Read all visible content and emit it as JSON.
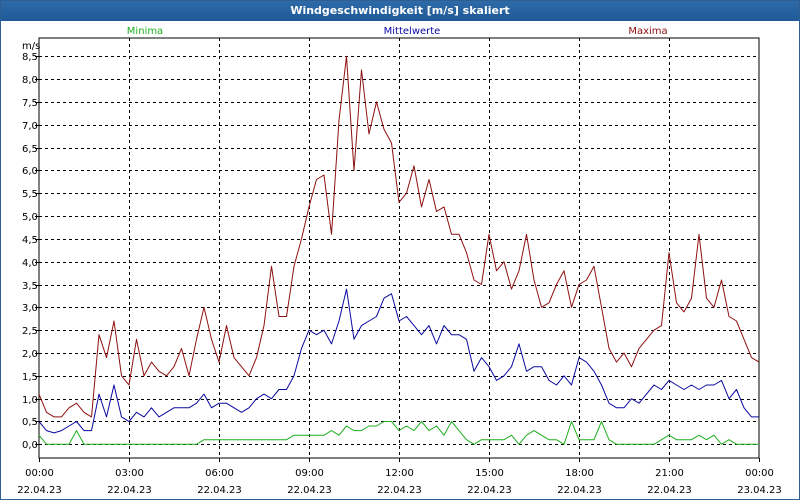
{
  "window": {
    "title": "Windgeschwindigkeit [m/s] skaliert"
  },
  "colors": {
    "min": "#1fae1f",
    "mean": "#0a0aa0",
    "max": "#8e1010",
    "title_bg": "#2466a6"
  },
  "chart_data": {
    "type": "line",
    "title": "Windgeschwindigkeit [m/s] skaliert",
    "ylabel": "m/s",
    "xlabel": "",
    "ylim": [
      -0.3,
      8.9
    ],
    "xlim": [
      0,
      24
    ],
    "grid": true,
    "legend": [
      "Minima",
      "Mittelwerte",
      "Maxima"
    ],
    "y_ticks": [
      "0,0",
      "0,5",
      "1,0",
      "1,5",
      "2,0",
      "2,5",
      "3,0",
      "3,5",
      "4,0",
      "4,5",
      "5,0",
      "5,5",
      "6,0",
      "6,5",
      "7,0",
      "7,5",
      "8,0",
      "8,5"
    ],
    "x_ticks": [
      {
        "time": "00:00",
        "date": "22.04.23"
      },
      {
        "time": "03:00",
        "date": "22.04.23"
      },
      {
        "time": "06:00",
        "date": "22.04.23"
      },
      {
        "time": "09:00",
        "date": "22.04.23"
      },
      {
        "time": "12:00",
        "date": "22.04.23"
      },
      {
        "time": "15:00",
        "date": "22.04.23"
      },
      {
        "time": "18:00",
        "date": "22.04.23"
      },
      {
        "time": "21:00",
        "date": "22.04.23"
      },
      {
        "time": "00:00",
        "date": "23.04.23"
      }
    ],
    "series": [
      {
        "name": "Maxima",
        "x": [
          0.0,
          0.25,
          0.5,
          0.75,
          1.0,
          1.25,
          1.5,
          1.75,
          2.0,
          2.25,
          2.5,
          2.75,
          3.0,
          3.25,
          3.5,
          3.75,
          4.0,
          4.25,
          4.5,
          4.75,
          5.0,
          5.25,
          5.5,
          5.75,
          6.0,
          6.25,
          6.5,
          6.75,
          7.0,
          7.25,
          7.5,
          7.75,
          8.0,
          8.25,
          8.5,
          8.75,
          9.0,
          9.25,
          9.5,
          9.75,
          10.0,
          10.25,
          10.5,
          10.75,
          11.0,
          11.25,
          11.5,
          11.75,
          12.0,
          12.25,
          12.5,
          12.75,
          13.0,
          13.25,
          13.5,
          13.75,
          14.0,
          14.25,
          14.5,
          14.75,
          15.0,
          15.25,
          15.5,
          15.75,
          16.0,
          16.25,
          16.5,
          16.75,
          17.0,
          17.25,
          17.5,
          17.75,
          18.0,
          18.25,
          18.5,
          18.75,
          19.0,
          19.25,
          19.5,
          19.75,
          20.0,
          20.25,
          20.5,
          20.75,
          21.0,
          21.25,
          21.5,
          21.75,
          22.0,
          22.25,
          22.5,
          22.75,
          23.0,
          23.25,
          23.5,
          23.75,
          24.0
        ],
        "y": [
          1.1,
          0.7,
          0.6,
          0.6,
          0.8,
          0.9,
          0.7,
          0.6,
          2.4,
          1.9,
          2.7,
          1.5,
          1.3,
          2.3,
          1.5,
          1.8,
          1.6,
          1.5,
          1.7,
          2.1,
          1.5,
          2.3,
          3.0,
          2.3,
          1.8,
          2.6,
          1.9,
          1.7,
          1.5,
          1.9,
          2.6,
          3.9,
          2.8,
          2.8,
          3.9,
          4.5,
          5.2,
          5.8,
          5.9,
          4.6,
          7.1,
          8.5,
          6.0,
          8.2,
          6.8,
          7.5,
          6.9,
          6.6,
          5.3,
          5.5,
          6.1,
          5.2,
          5.8,
          5.1,
          5.2,
          4.6,
          4.6,
          4.2,
          3.6,
          3.5,
          4.6,
          3.8,
          4.0,
          3.4,
          3.8,
          4.6,
          3.6,
          3.0,
          3.1,
          3.5,
          3.8,
          3.0,
          3.5,
          3.6,
          3.9,
          3.0,
          2.1,
          1.8,
          2.0,
          1.7,
          2.1,
          2.3,
          2.5,
          2.6,
          4.2,
          3.1,
          2.9,
          3.2,
          4.6,
          3.2,
          3.0,
          3.6,
          2.8,
          2.7,
          2.3,
          1.9,
          1.8
        ]
      },
      {
        "name": "Mittelwerte",
        "x": [
          0.0,
          0.25,
          0.5,
          0.75,
          1.0,
          1.25,
          1.5,
          1.75,
          2.0,
          2.25,
          2.5,
          2.75,
          3.0,
          3.25,
          3.5,
          3.75,
          4.0,
          4.25,
          4.5,
          4.75,
          5.0,
          5.25,
          5.5,
          5.75,
          6.0,
          6.25,
          6.5,
          6.75,
          7.0,
          7.25,
          7.5,
          7.75,
          8.0,
          8.25,
          8.5,
          8.75,
          9.0,
          9.25,
          9.5,
          9.75,
          10.0,
          10.25,
          10.5,
          10.75,
          11.0,
          11.25,
          11.5,
          11.75,
          12.0,
          12.25,
          12.5,
          12.75,
          13.0,
          13.25,
          13.5,
          13.75,
          14.0,
          14.25,
          14.5,
          14.75,
          15.0,
          15.25,
          15.5,
          15.75,
          16.0,
          16.25,
          16.5,
          16.75,
          17.0,
          17.25,
          17.5,
          17.75,
          18.0,
          18.25,
          18.5,
          18.75,
          19.0,
          19.25,
          19.5,
          19.75,
          20.0,
          20.25,
          20.5,
          20.75,
          21.0,
          21.25,
          21.5,
          21.75,
          22.0,
          22.25,
          22.5,
          22.75,
          23.0,
          23.25,
          23.5,
          23.75,
          24.0
        ],
        "y": [
          0.5,
          0.3,
          0.25,
          0.3,
          0.4,
          0.5,
          0.3,
          0.3,
          1.1,
          0.6,
          1.3,
          0.6,
          0.5,
          0.7,
          0.6,
          0.8,
          0.6,
          0.7,
          0.8,
          0.8,
          0.8,
          0.9,
          1.1,
          0.8,
          0.9,
          0.9,
          0.8,
          0.7,
          0.8,
          1.0,
          1.1,
          1.0,
          1.2,
          1.2,
          1.5,
          2.1,
          2.5,
          2.4,
          2.5,
          2.2,
          2.7,
          3.4,
          2.3,
          2.6,
          2.7,
          2.8,
          3.2,
          3.3,
          2.7,
          2.8,
          2.6,
          2.4,
          2.6,
          2.2,
          2.6,
          2.4,
          2.4,
          2.3,
          1.6,
          1.9,
          1.7,
          1.4,
          1.5,
          1.7,
          2.2,
          1.6,
          1.7,
          1.7,
          1.4,
          1.3,
          1.5,
          1.3,
          1.9,
          1.8,
          1.6,
          1.3,
          0.9,
          0.8,
          0.8,
          1.0,
          0.9,
          1.1,
          1.3,
          1.2,
          1.4,
          1.3,
          1.2,
          1.3,
          1.2,
          1.3,
          1.3,
          1.4,
          1.0,
          1.2,
          0.8,
          0.6,
          0.6
        ]
      },
      {
        "name": "Minima",
        "x": [
          0.0,
          0.25,
          0.5,
          0.75,
          1.0,
          1.25,
          1.5,
          1.75,
          2.0,
          2.25,
          2.5,
          2.75,
          3.0,
          3.25,
          3.5,
          3.75,
          4.0,
          4.25,
          4.5,
          4.75,
          5.0,
          5.25,
          5.5,
          5.75,
          6.0,
          6.25,
          6.5,
          6.75,
          7.0,
          7.25,
          7.5,
          7.75,
          8.0,
          8.25,
          8.5,
          8.75,
          9.0,
          9.25,
          9.5,
          9.75,
          10.0,
          10.25,
          10.5,
          10.75,
          11.0,
          11.25,
          11.5,
          11.75,
          12.0,
          12.25,
          12.5,
          12.75,
          13.0,
          13.25,
          13.5,
          13.75,
          14.0,
          14.25,
          14.5,
          14.75,
          15.0,
          15.25,
          15.5,
          15.75,
          16.0,
          16.25,
          16.5,
          16.75,
          17.0,
          17.25,
          17.5,
          17.75,
          18.0,
          18.25,
          18.5,
          18.75,
          19.0,
          19.25,
          19.5,
          19.75,
          20.0,
          20.25,
          20.5,
          20.75,
          21.0,
          21.25,
          21.5,
          21.75,
          22.0,
          22.25,
          22.5,
          22.75,
          23.0,
          23.25,
          23.5,
          23.75,
          24.0
        ],
        "y": [
          0.2,
          0.0,
          0.0,
          0.0,
          0.0,
          0.3,
          0.0,
          0.0,
          0.0,
          0.0,
          0.0,
          0.0,
          0.0,
          0.0,
          0.0,
          0.0,
          0.0,
          0.0,
          0.0,
          0.0,
          0.0,
          0.0,
          0.1,
          0.1,
          0.1,
          0.1,
          0.1,
          0.1,
          0.1,
          0.1,
          0.1,
          0.1,
          0.1,
          0.1,
          0.2,
          0.2,
          0.2,
          0.2,
          0.2,
          0.3,
          0.2,
          0.4,
          0.3,
          0.3,
          0.4,
          0.4,
          0.5,
          0.5,
          0.3,
          0.4,
          0.3,
          0.5,
          0.3,
          0.4,
          0.2,
          0.5,
          0.3,
          0.1,
          0.0,
          0.1,
          0.1,
          0.1,
          0.1,
          0.2,
          0.0,
          0.2,
          0.3,
          0.2,
          0.1,
          0.1,
          0.0,
          0.5,
          0.1,
          0.1,
          0.1,
          0.5,
          0.1,
          0.0,
          0.0,
          0.0,
          0.0,
          0.0,
          0.0,
          0.1,
          0.2,
          0.1,
          0.1,
          0.1,
          0.2,
          0.1,
          0.2,
          0.0,
          0.1,
          0.0,
          0.0,
          0.0,
          0.0
        ]
      }
    ]
  }
}
